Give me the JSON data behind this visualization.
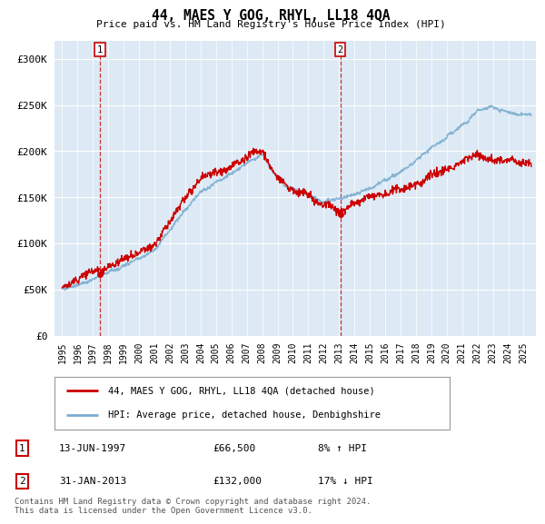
{
  "title": "44, MAES Y GOG, RHYL, LL18 4QA",
  "subtitle": "Price paid vs. HM Land Registry's House Price Index (HPI)",
  "ylim": [
    0,
    320000
  ],
  "yticks": [
    0,
    50000,
    100000,
    150000,
    200000,
    250000,
    300000
  ],
  "ytick_labels": [
    "£0",
    "£50K",
    "£100K",
    "£150K",
    "£200K",
    "£250K",
    "£300K"
  ],
  "legend_line1": "44, MAES Y GOG, RHYL, LL18 4QA (detached house)",
  "legend_line2": "HPI: Average price, detached house, Denbighshire",
  "footnote": "Contains HM Land Registry data © Crown copyright and database right 2024.\nThis data is licensed under the Open Government Licence v3.0.",
  "line_color_red": "#cc0000",
  "line_color_blue": "#7aadcf",
  "bg_color": "#ffffff",
  "plot_bg": "#ddeaf5",
  "grid_color": "#ffffff",
  "sale1_year": 1997.45,
  "sale1_price": 66500,
  "sale2_year": 2013.08,
  "sale2_price": 132000
}
